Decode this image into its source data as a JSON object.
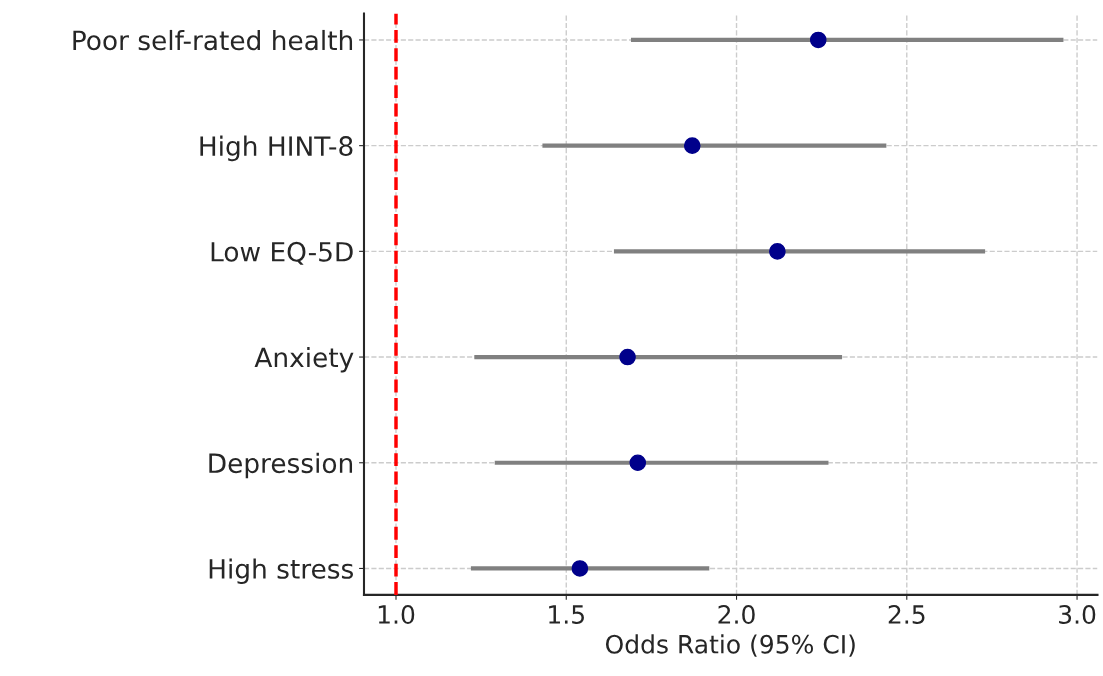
{
  "chart_data": {
    "type": "scatter",
    "orientation": "horizontal",
    "xlabel": "Odds Ratio (95% CI)",
    "categories": [
      "Poor self-rated health",
      "High HINT-8",
      "Low EQ-5D",
      "Anxiety",
      "Depression",
      "High stress"
    ],
    "values": [
      2.24,
      1.87,
      2.12,
      1.68,
      1.71,
      1.54
    ],
    "errors": [
      [
        1.69,
        2.96
      ],
      [
        1.43,
        2.44
      ],
      [
        1.64,
        2.73
      ],
      [
        1.23,
        2.31
      ],
      [
        1.29,
        2.27
      ],
      [
        1.22,
        1.92
      ]
    ],
    "color": "#00008b",
    "xlim": [
      0.906,
      3.06
    ],
    "xticks": [
      {
        "value": 1.0,
        "label": "1.0"
      },
      {
        "value": 1.5,
        "label": "1.5"
      },
      {
        "value": 2.0,
        "label": "2.0"
      },
      {
        "value": 2.5,
        "label": "2.5"
      },
      {
        "value": 3.0,
        "label": "3.0"
      }
    ],
    "ref_lines": [
      {
        "axis": "x",
        "value": 1.0,
        "color": "#ff0000",
        "line_style": "dashed"
      }
    ],
    "grid": true,
    "marker": "circle"
  }
}
